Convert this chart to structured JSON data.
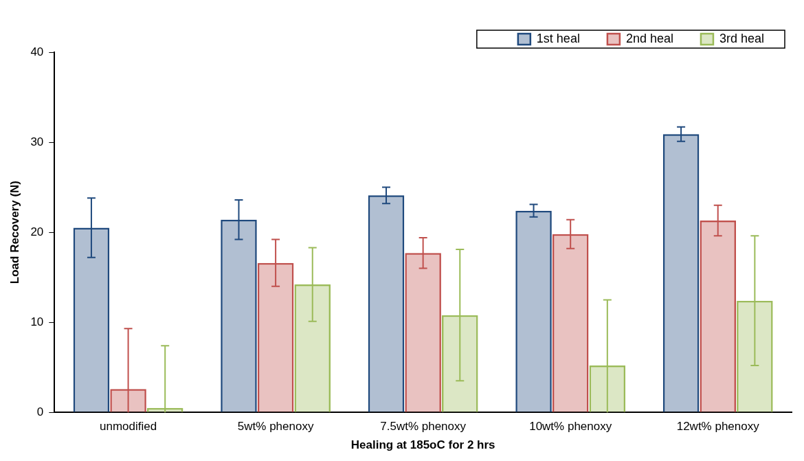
{
  "chart_data": {
    "type": "bar",
    "xlabel": "Healing at 185oC for 2 hrs",
    "ylabel": "Load Recovery (N)",
    "categories": [
      "unmodified",
      "5wt% phenoxy",
      "7.5wt% phenoxy",
      "10wt% phenoxy",
      "12wt% phenoxy"
    ],
    "series": [
      {
        "name": "1st heal",
        "color": "#1f497d",
        "values": [
          20.5,
          21.4,
          24.1,
          22.4,
          30.9
        ],
        "errors": [
          3.3,
          2.2,
          0.9,
          0.7,
          0.8
        ]
      },
      {
        "name": "2nd heal",
        "color": "#c0504d",
        "values": [
          2.6,
          16.6,
          17.7,
          19.8,
          21.3
        ],
        "errors": [
          [
            0,
            9.3
          ],
          2.6,
          1.7,
          1.6,
          1.7
        ]
      },
      {
        "name": "3rd heal",
        "color": "#9bbb59",
        "values": [
          0.5,
          14.2,
          10.8,
          5.2,
          12.4
        ],
        "errors": [
          [
            0,
            7.4
          ],
          4.1,
          7.3,
          [
            0,
            12.5
          ],
          7.2
        ]
      }
    ],
    "ylim": [
      0,
      40
    ],
    "yticks": [
      0,
      10,
      20,
      30,
      40
    ],
    "grid": false,
    "legend": "top right"
  }
}
